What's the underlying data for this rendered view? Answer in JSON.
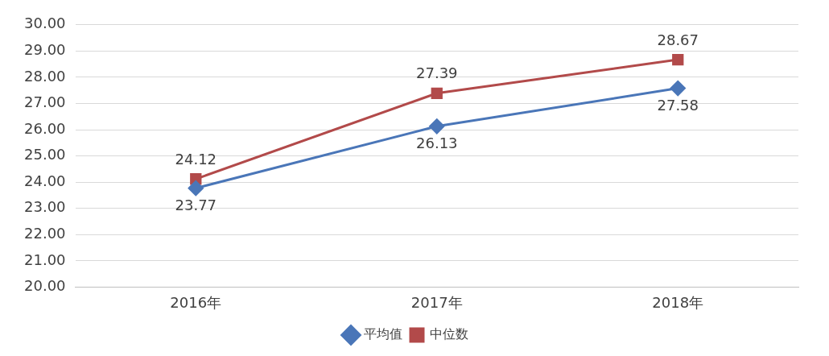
{
  "chart_data": {
    "type": "line",
    "categories": [
      "2016年",
      "2017年",
      "2018年"
    ],
    "series": [
      {
        "name": "平均值",
        "color": "#4a76b8",
        "marker": "diamond",
        "values": [
          23.77,
          26.13,
          27.58
        ]
      },
      {
        "name": "中位数",
        "color": "#b24a4a",
        "marker": "square",
        "values": [
          24.12,
          27.39,
          28.67
        ]
      }
    ],
    "ylim": [
      20,
      30
    ],
    "yticks": [
      {
        "value": 20,
        "label": "20.00"
      },
      {
        "value": 21,
        "label": "21.00"
      },
      {
        "value": 22,
        "label": "22.00"
      },
      {
        "value": 23,
        "label": "23.00"
      },
      {
        "value": 24,
        "label": "24.00"
      },
      {
        "value": 25,
        "label": "25.00"
      },
      {
        "value": 26,
        "label": "26.00"
      },
      {
        "value": 27,
        "label": "27.00"
      },
      {
        "value": 28,
        "label": "28.00"
      },
      {
        "value": 29,
        "label": "29.00"
      },
      {
        "value": 30,
        "label": "30.00"
      }
    ],
    "grid": "y",
    "legend": "bottom",
    "data_labels": true,
    "line_style": "solid"
  }
}
